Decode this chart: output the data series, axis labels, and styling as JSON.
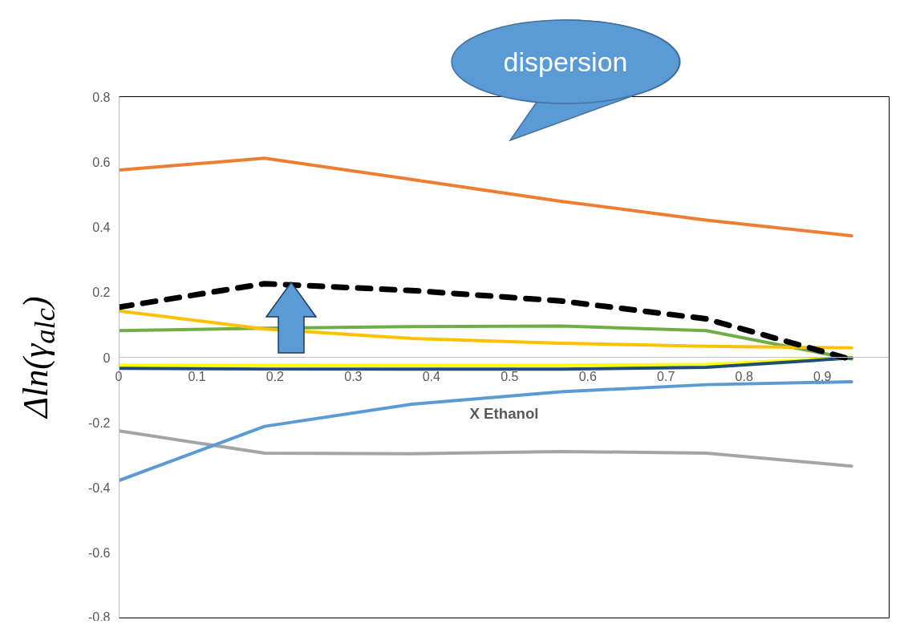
{
  "chart_data": {
    "type": "line",
    "xlabel": "X Ethanol",
    "ylabel": "Δln(γ$_{alc}$)",
    "x": [
      0,
      0.186,
      0.374,
      0.565,
      0.751,
      0.937
    ],
    "xlim": [
      0,
      0.985
    ],
    "xticks": [
      0,
      0.1,
      0.2,
      0.3,
      0.4,
      0.5,
      0.6,
      0.7,
      0.8,
      0.9
    ],
    "ylim": [
      -0.8,
      0.8
    ],
    "yticks": [
      -0.8,
      -0.6,
      -0.4,
      -0.2,
      0,
      0.2,
      0.4,
      0.6,
      0.8
    ],
    "grid": false,
    "marker": "none",
    "line_style": "solid",
    "annotations": [
      "dispersion"
    ],
    "series": [
      {
        "color": "#ed7d31",
        "values": [
          0.575,
          0.611,
          0.546,
          0.479,
          0.421,
          0.373
        ]
      },
      {
        "color": "#a5a5a5",
        "values": [
          -0.226,
          -0.294,
          -0.296,
          -0.289,
          -0.294,
          -0.334
        ]
      },
      {
        "color": "#5b9bd5",
        "values": [
          -0.378,
          -0.212,
          -0.144,
          -0.106,
          -0.084,
          -0.075
        ]
      },
      {
        "color": "#70ad47",
        "values": [
          0.082,
          0.089,
          0.094,
          0.096,
          0.082,
          -0.005
        ]
      },
      {
        "color": "#ffc000",
        "values": [
          0.142,
          0.087,
          0.058,
          0.043,
          0.034,
          0.029
        ]
      },
      {
        "color": "#ffff00",
        "values": [
          -0.024,
          -0.024,
          -0.024,
          -0.024,
          -0.022,
          0
        ]
      },
      {
        "color": "#1f4e79",
        "values": [
          -0.034,
          -0.036,
          -0.036,
          -0.036,
          -0.031,
          -0.002
        ]
      },
      {
        "color": "#000000",
        "line_style": "dashed",
        "values": [
          0.154,
          0.226,
          0.205,
          0.173,
          0.118,
          -0.007
        ]
      }
    ]
  }
}
